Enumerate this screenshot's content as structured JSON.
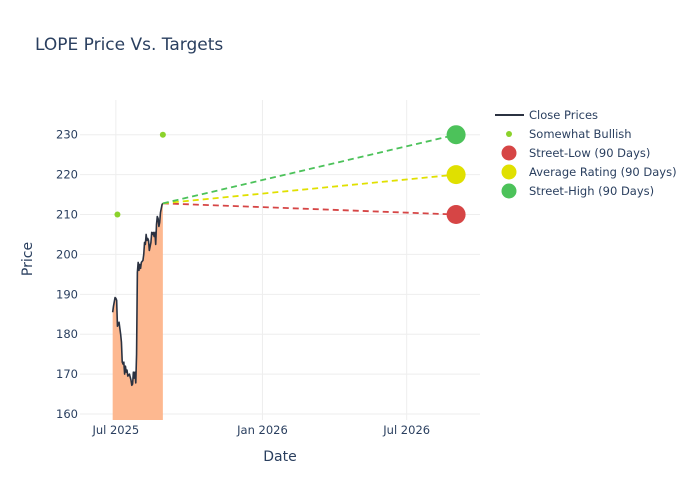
{
  "chart_data": {
    "type": "line",
    "title": "LOPE Price Vs. Targets",
    "xlabel": "Date",
    "ylabel": "Price",
    "ylim": [
      158.5,
      238.7
    ],
    "xlim": [
      "2025-05-17",
      "2026-10-01"
    ],
    "x_ticks": [
      {
        "date": "2025-07-01",
        "label": "Jul 2025"
      },
      {
        "date": "2026-01-01",
        "label": "Jan 2026"
      },
      {
        "date": "2026-07-01",
        "label": "Jul 2026"
      }
    ],
    "y_ticks": [
      160,
      170,
      180,
      190,
      200,
      210,
      220,
      230
    ],
    "close_prices": {
      "name": "Close Prices",
      "color": "#2b3241",
      "fill_color": "#fdb48a",
      "points": [
        [
          "2025-06-27",
          185.5
        ],
        [
          "2025-06-28",
          187.0
        ],
        [
          "2025-06-30",
          189.2
        ],
        [
          "2025-07-01",
          189.0
        ],
        [
          "2025-07-02",
          188.5
        ],
        [
          "2025-07-03",
          182.0
        ],
        [
          "2025-07-05",
          183.0
        ],
        [
          "2025-07-07",
          180.0
        ],
        [
          "2025-07-08",
          178.0
        ],
        [
          "2025-07-09",
          173.0
        ],
        [
          "2025-07-10",
          172.5
        ],
        [
          "2025-07-11",
          173.0
        ],
        [
          "2025-07-12",
          170.0
        ],
        [
          "2025-07-13",
          172.0
        ],
        [
          "2025-07-14",
          170.5
        ],
        [
          "2025-07-15",
          171.0
        ],
        [
          "2025-07-16",
          169.5
        ],
        [
          "2025-07-18",
          170.0
        ],
        [
          "2025-07-20",
          168.5
        ],
        [
          "2025-07-21",
          167.2
        ],
        [
          "2025-07-22",
          167.5
        ],
        [
          "2025-07-23",
          170.5
        ],
        [
          "2025-07-24",
          169.0
        ],
        [
          "2025-07-25",
          170.5
        ],
        [
          "2025-07-26",
          167.8
        ],
        [
          "2025-07-27",
          175.0
        ],
        [
          "2025-07-28",
          195.5
        ],
        [
          "2025-07-29",
          198.0
        ],
        [
          "2025-07-30",
          196.0
        ],
        [
          "2025-07-31",
          197.5
        ],
        [
          "2025-08-01",
          196.5
        ],
        [
          "2025-08-02",
          198.0
        ],
        [
          "2025-08-04",
          198.5
        ],
        [
          "2025-08-05",
          200.0
        ],
        [
          "2025-08-06",
          203.0
        ],
        [
          "2025-08-07",
          202.5
        ],
        [
          "2025-08-08",
          205.0
        ],
        [
          "2025-08-09",
          203.5
        ],
        [
          "2025-08-10",
          204.0
        ],
        [
          "2025-08-11",
          203.5
        ],
        [
          "2025-08-12",
          201.0
        ],
        [
          "2025-08-13",
          202.0
        ],
        [
          "2025-08-14",
          203.0
        ],
        [
          "2025-08-15",
          205.5
        ],
        [
          "2025-08-16",
          205.0
        ],
        [
          "2025-08-17",
          205.5
        ],
        [
          "2025-08-18",
          204.5
        ],
        [
          "2025-08-19",
          205.5
        ],
        [
          "2025-08-20",
          202.5
        ],
        [
          "2025-08-21",
          207.5
        ],
        [
          "2025-08-22",
          209.5
        ],
        [
          "2025-08-23",
          209.0
        ],
        [
          "2025-08-24",
          207.0
        ],
        [
          "2025-08-25",
          208.0
        ],
        [
          "2025-08-26",
          210.5
        ],
        [
          "2025-08-27",
          211.5
        ],
        [
          "2025-08-28",
          212.5
        ],
        [
          "2025-08-29",
          212.8
        ]
      ]
    },
    "somewhat_bullish": {
      "name": "Somewhat Bullish",
      "color": "#8bd22b",
      "points": [
        [
          "2025-07-03",
          210
        ],
        [
          "2025-08-29",
          230
        ]
      ]
    },
    "targets": [
      {
        "name": "Street-Low (90 Days)",
        "value": 210,
        "color": "#d64545"
      },
      {
        "name": "Average Rating (90 Days)",
        "value": 220,
        "color": "#e0e000"
      },
      {
        "name": "Street-High (90 Days)",
        "value": 230,
        "color": "#4cc25a"
      }
    ],
    "target_start": {
      "date": "2025-08-29",
      "value": 212.8
    },
    "target_date": "2026-09-01",
    "legend": {
      "position": "top-right",
      "entries": [
        {
          "label": "Close Prices",
          "kind": "line",
          "color": "#2b3241"
        },
        {
          "label": "Somewhat Bullish",
          "kind": "small-dot",
          "color": "#8bd22b"
        },
        {
          "label": "Street-Low (90 Days)",
          "kind": "dot",
          "color": "#d64545"
        },
        {
          "label": "Average Rating (90 Days)",
          "kind": "dot",
          "color": "#e0e000"
        },
        {
          "label": "Street-High (90 Days)",
          "kind": "dot",
          "color": "#4cc25a"
        }
      ]
    }
  }
}
